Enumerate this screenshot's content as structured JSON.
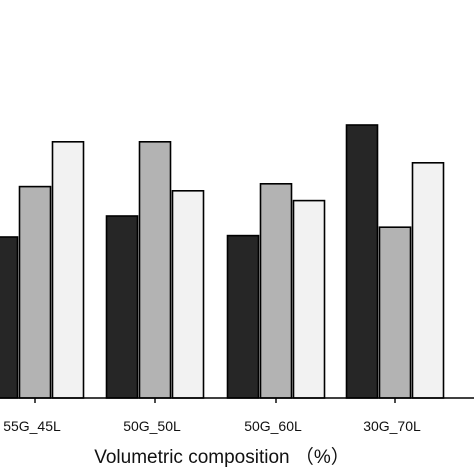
{
  "chart_data": {
    "type": "bar",
    "categories": [
      "55G_45L",
      "50G_50L",
      "50G_60L",
      "30G_70L"
    ],
    "series": [
      {
        "values": [
          11.5,
          13.0,
          11.6,
          19.5
        ],
        "color": "#262626"
      },
      {
        "values": [
          15.1,
          18.3,
          15.3,
          12.2
        ],
        "color": "#b3b3b3"
      },
      {
        "values": [
          18.3,
          14.8,
          14.1,
          16.8
        ],
        "color": "#f2f2f2"
      }
    ],
    "xlabel": "Volumetric composition （%）",
    "ylim": [
      0,
      35
    ],
    "grid": false,
    "bar_stroke": "#000000"
  }
}
